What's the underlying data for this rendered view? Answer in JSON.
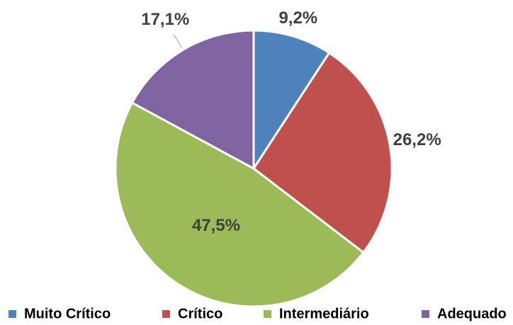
{
  "chart_data": {
    "type": "pie",
    "categories": [
      "Muito Crítico",
      "Crítico",
      "Intermediário",
      "Adequado"
    ],
    "values": [
      9.2,
      26.2,
      47.5,
      17.1
    ],
    "value_labels": [
      "9,2%",
      "26,2%",
      "47,5%",
      "17,1%"
    ],
    "colors": [
      "#4f81bd",
      "#c0504d",
      "#9bbb59",
      "#8064a2"
    ],
    "legend": "bottom"
  }
}
